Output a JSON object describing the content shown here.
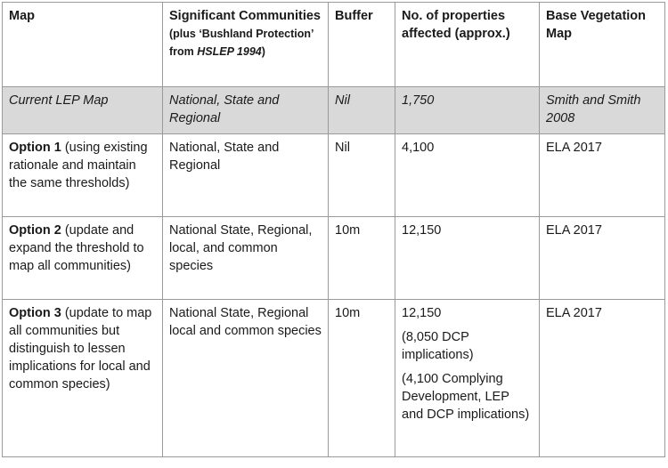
{
  "headers": {
    "map": "Map",
    "communities_main": "Significant Communities",
    "communities_plus": " (plus ‘Bushland Protection’ from ",
    "communities_ref": "HSLEP 1994",
    "communities_close": ")",
    "buffer": "Buffer",
    "properties": "No. of properties affected (approx.)",
    "vegetation": "Base Vegetation Map"
  },
  "rows": [
    {
      "map": "Current LEP Map",
      "communities": "National, State and Regional",
      "buffer": "Nil",
      "properties": [
        "1,750"
      ],
      "vegetation": "Smith and Smith 2008"
    },
    {
      "map_bold": "Option 1",
      "map_rest": " (using existing rationale and maintain the same thresholds)",
      "communities": "National, State and Regional",
      "buffer": "Nil",
      "properties": [
        "4,100"
      ],
      "vegetation": "ELA 2017"
    },
    {
      "map_bold": "Option 2",
      "map_rest": " (update and expand the threshold to map all communities)",
      "communities": "National State, Regional, local, and common species",
      "buffer": "10m",
      "properties": [
        "12,150"
      ],
      "vegetation": "ELA 2017"
    },
    {
      "map_bold": "Option 3",
      "map_rest": " (update to map all communities but distinguish to lessen implications for local and common species)",
      "communities": "National State, Regional local and common species",
      "buffer": "10m",
      "properties": [
        "12,150",
        "(8,050 DCP implications)",
        "(4,100 Complying Development, LEP and DCP implications)"
      ],
      "vegetation": "ELA 2017"
    }
  ]
}
